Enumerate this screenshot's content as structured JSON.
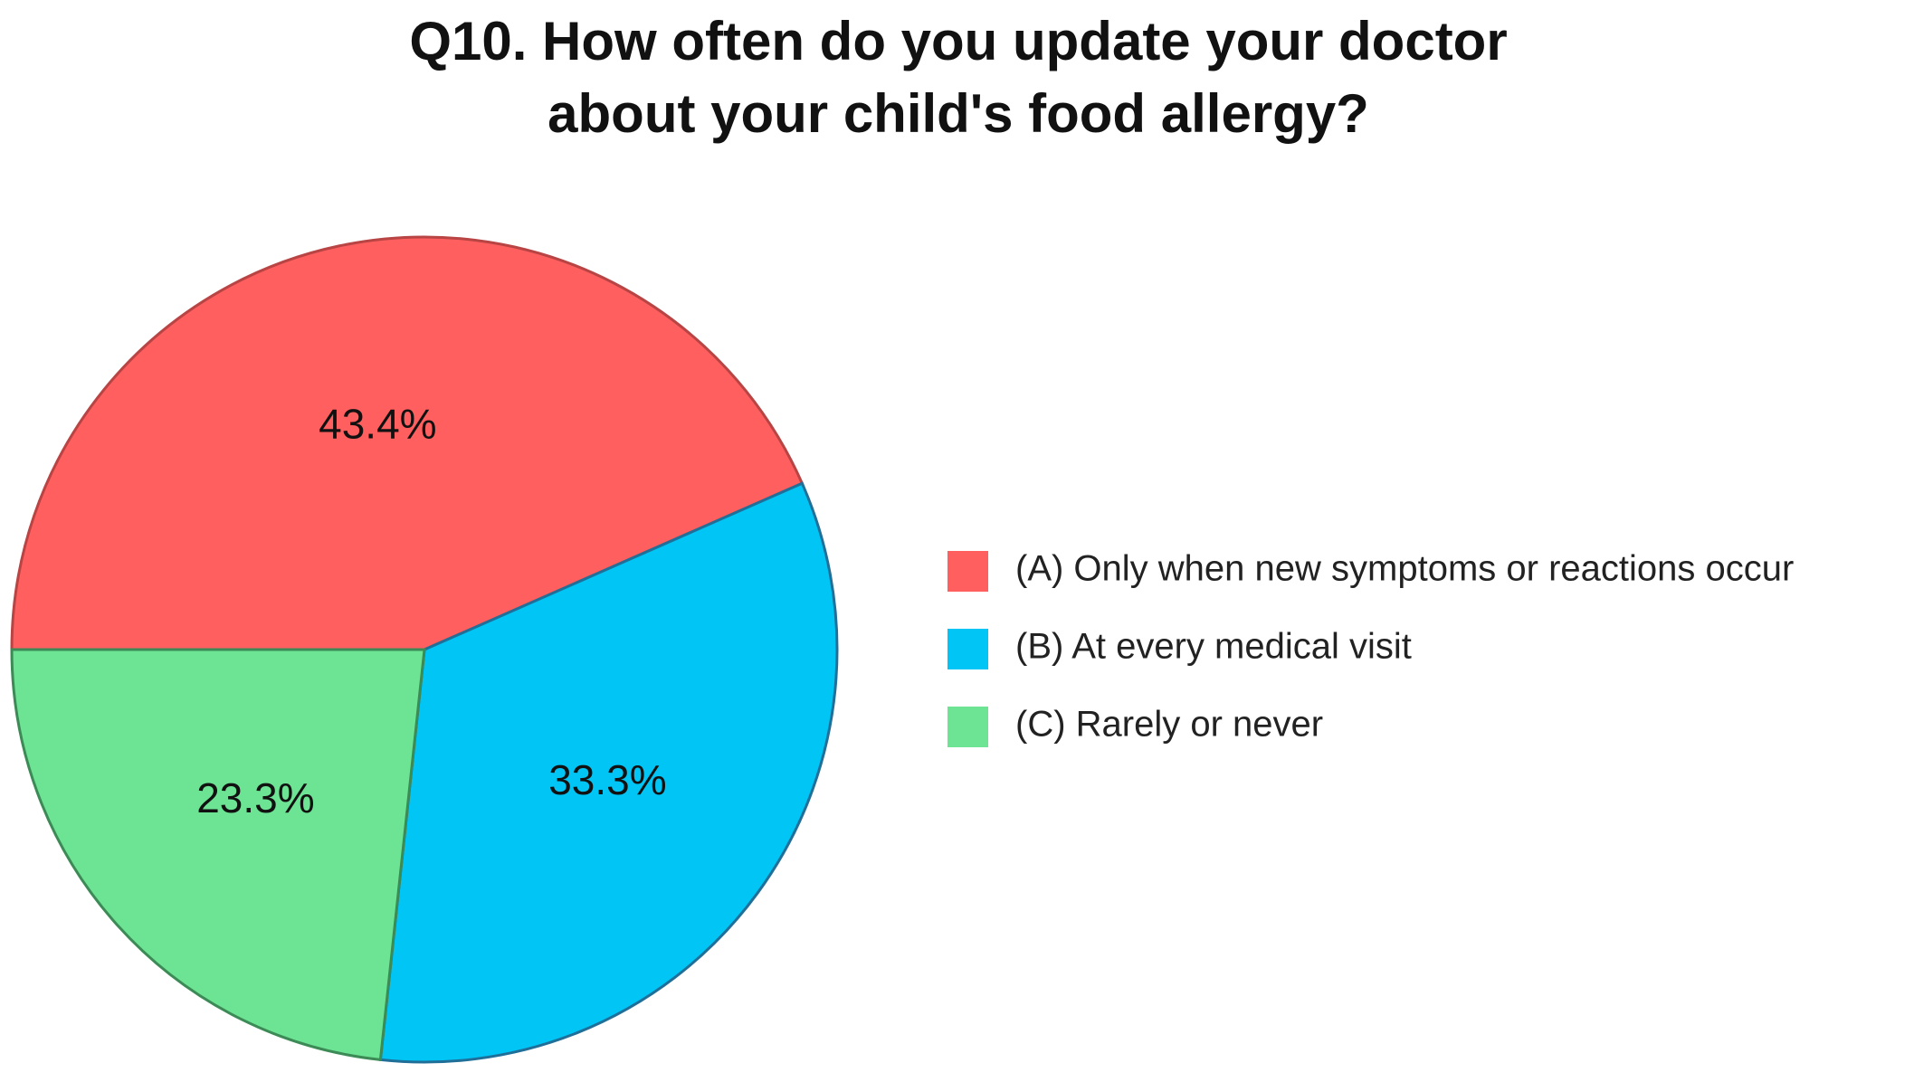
{
  "chart_data": {
    "type": "pie",
    "title": [
      "Q10. How often do you update your doctor",
      "about your child's food allergy?"
    ],
    "categories": [
      "(A) Only when new symptoms or reactions occur",
      "(B) At every medical visit",
      "(C) Rarely or never"
    ],
    "values": [
      43.4,
      33.3,
      23.3
    ],
    "value_labels": [
      "43.4%",
      "33.3%",
      "23.3%"
    ],
    "colors": [
      "#ff5f5f",
      "#00c5f5",
      "#6de394"
    ],
    "legend": "right"
  }
}
